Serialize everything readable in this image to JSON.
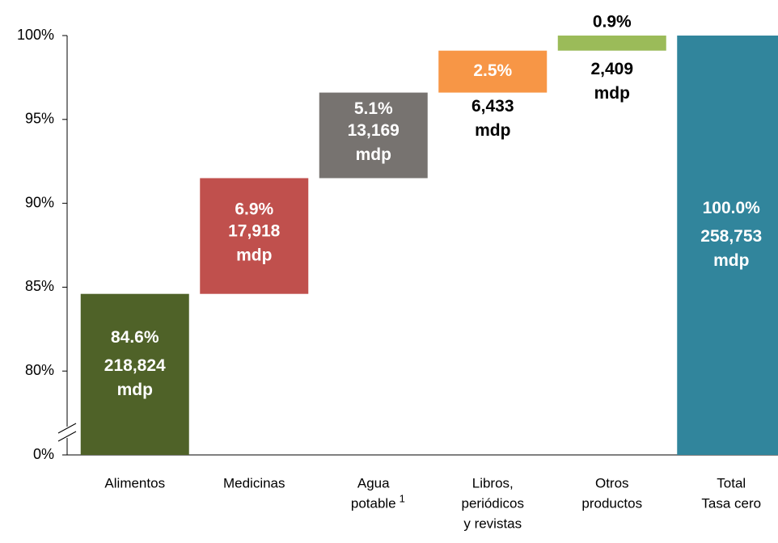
{
  "chart_data": {
    "type": "waterfall",
    "categories": [
      [
        "Alimentos"
      ],
      [
        "Medicinas"
      ],
      [
        "Agua",
        "potable"
      ],
      [
        "Libros,",
        "periódicos",
        "y revistas"
      ],
      [
        "Otros",
        "productos"
      ],
      [
        "Total",
        "Tasa cero"
      ]
    ],
    "note_marks": [
      null,
      null,
      "1",
      null,
      null,
      null
    ],
    "values": [
      84.6,
      6.9,
      5.1,
      2.5,
      0.9,
      100.0
    ],
    "value_labels": [
      "84.6%",
      "6.9%",
      "5.1%",
      "2.5%",
      "0.9%",
      "100.0%"
    ],
    "amounts": [
      218824,
      17918,
      13169,
      6433,
      2409,
      258753
    ],
    "amount_labels": [
      "218,824",
      "17,918",
      "13,169",
      "6,433",
      "2,409",
      "258,753"
    ],
    "amount_unit": "mdp",
    "is_total": [
      false,
      false,
      false,
      false,
      false,
      true
    ],
    "colors": [
      "#4f6228",
      "#c0504d",
      "#777370",
      "#f79646",
      "#9bbb59",
      "#31859c"
    ],
    "ylim": [
      0,
      100
    ],
    "axis_break": [
      0,
      75
    ],
    "yticks": [
      {
        "value": 0,
        "label": "0%"
      },
      {
        "value": 80,
        "label": "80%"
      },
      {
        "value": 85,
        "label": "85%"
      },
      {
        "value": 90,
        "label": "90%"
      },
      {
        "value": 95,
        "label": "95%"
      },
      {
        "value": 100,
        "label": "100%"
      }
    ]
  }
}
